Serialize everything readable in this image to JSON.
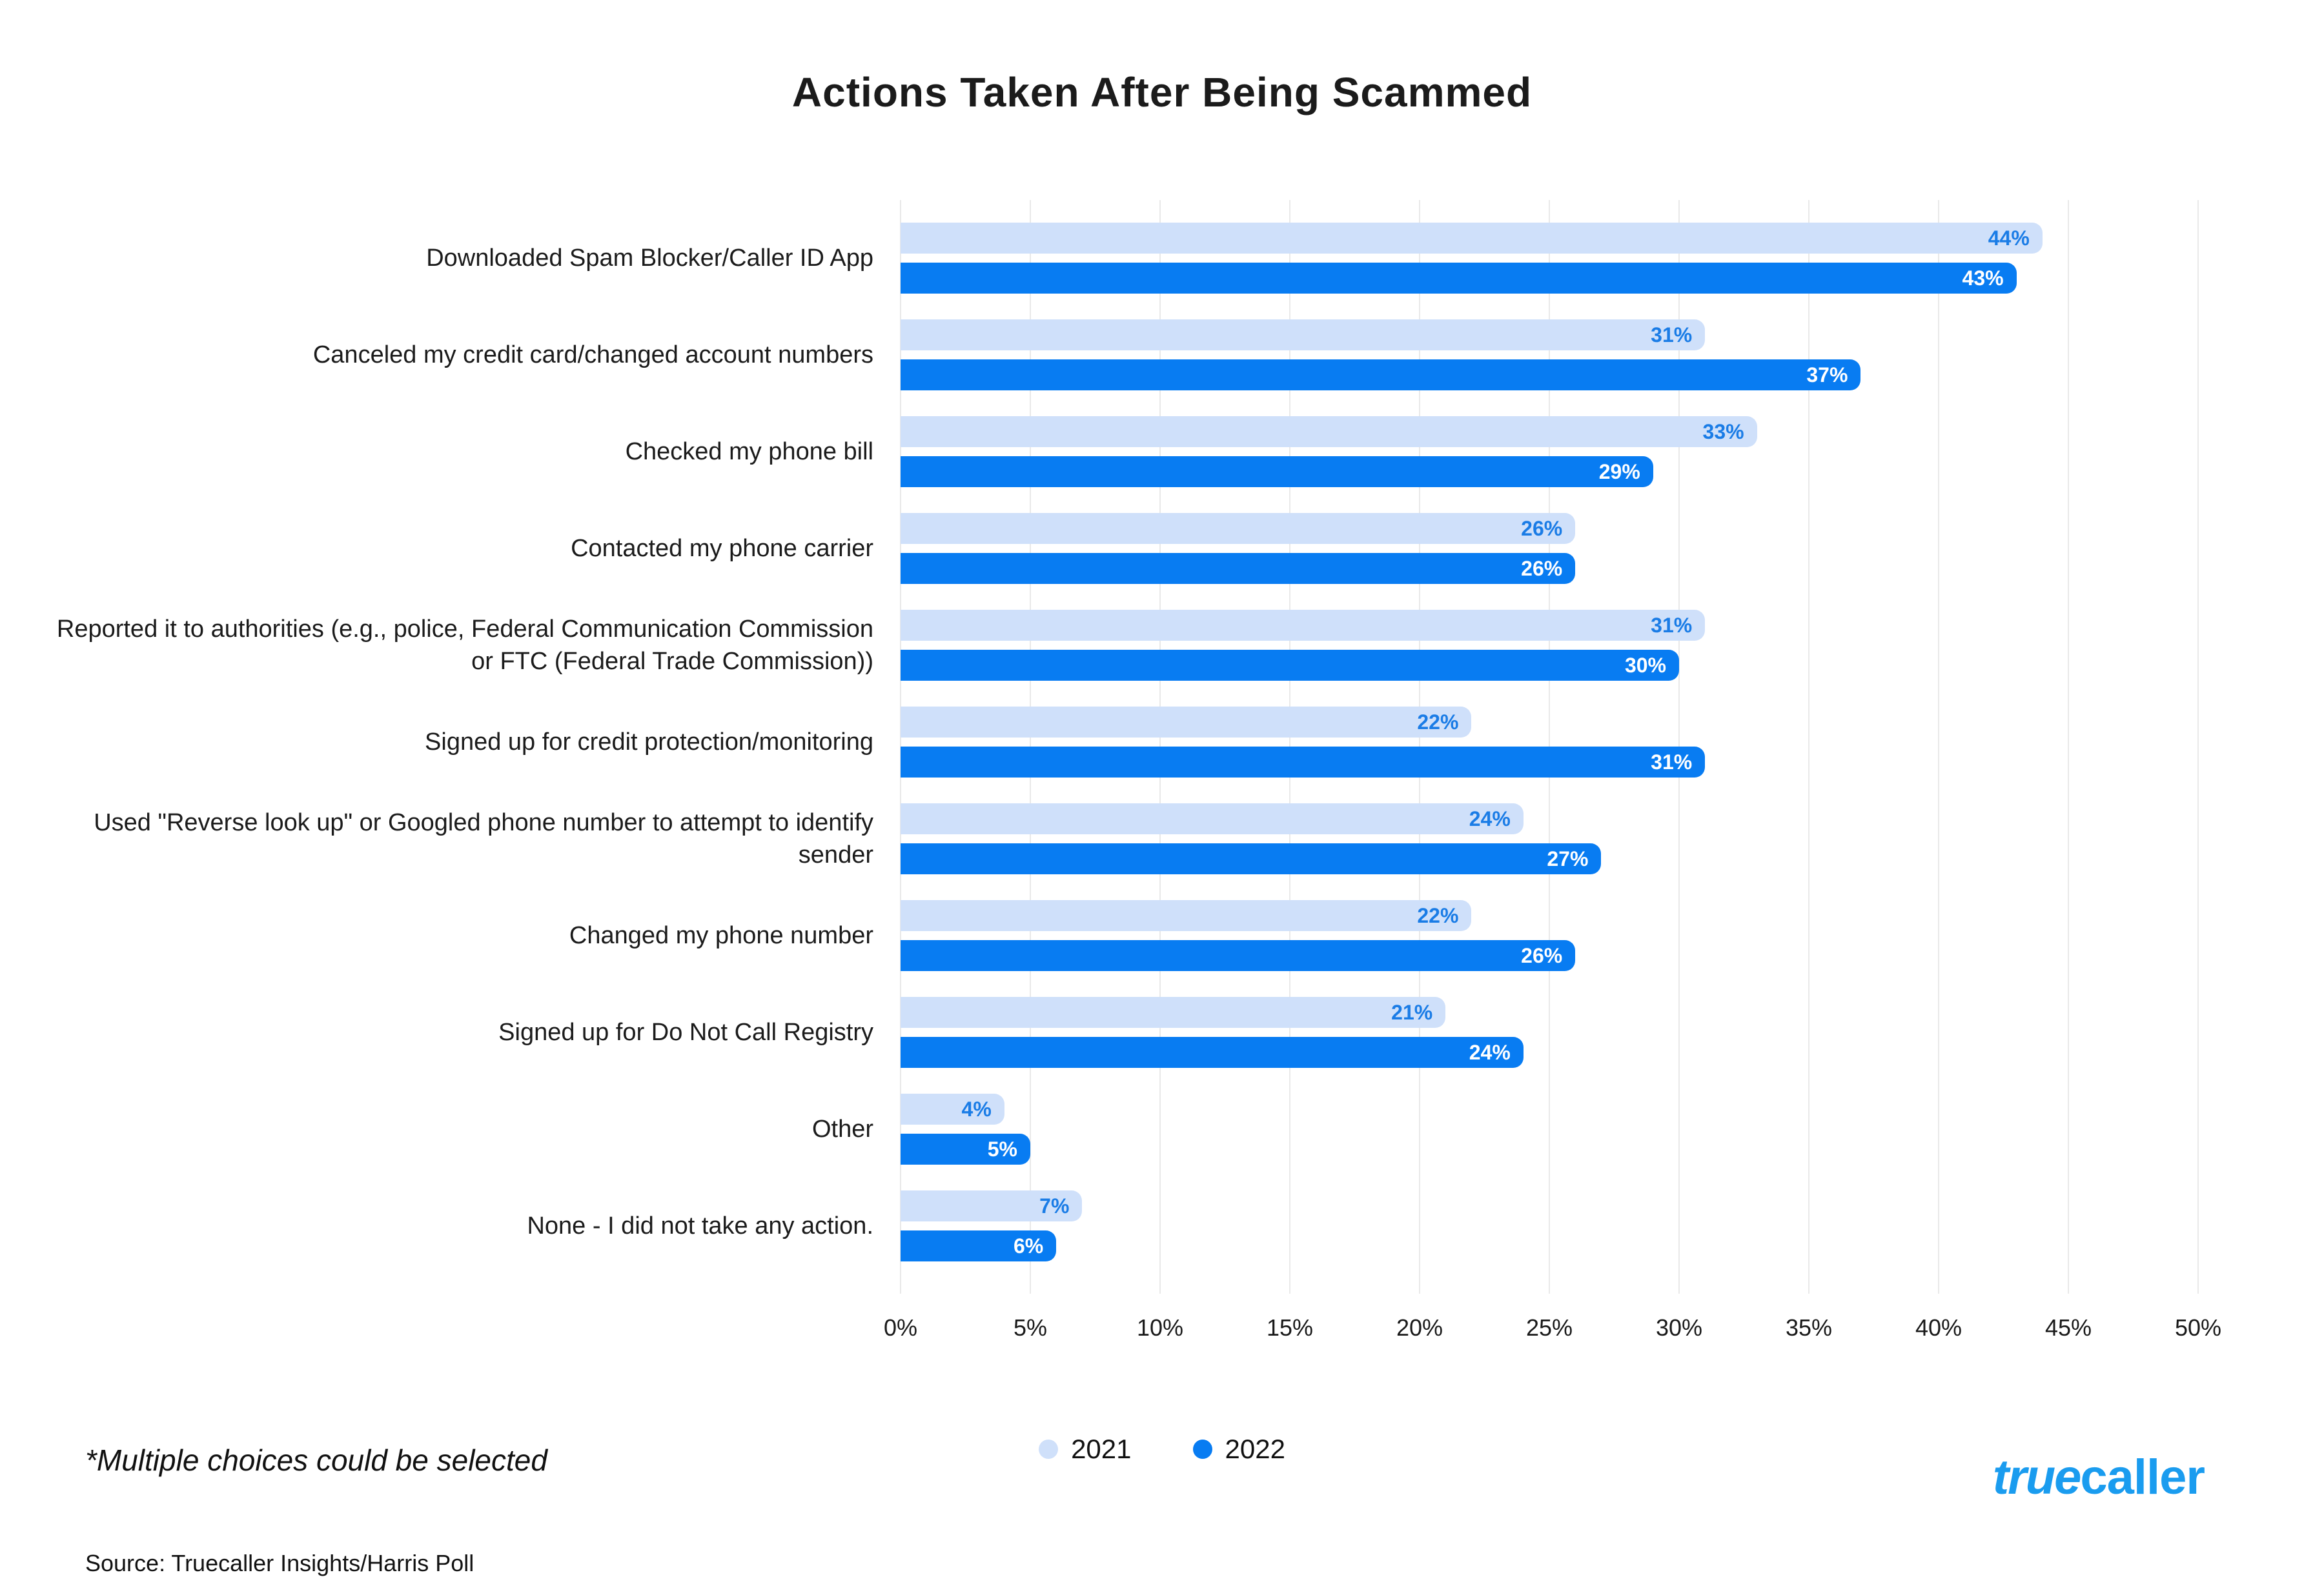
{
  "title": "Actions Taken After Being Scammed",
  "chart_data": {
    "type": "bar",
    "orientation": "horizontal",
    "title": "Actions Taken After Being Scammed",
    "xlim": [
      0,
      50
    ],
    "x_ticks": [
      "0%",
      "5%",
      "10%",
      "15%",
      "20%",
      "25%",
      "30%",
      "35%",
      "40%",
      "45%",
      "50%"
    ],
    "grid": true,
    "legend_position": "bottom-center",
    "categories": [
      "Downloaded Spam Blocker/Caller ID App",
      "Canceled my credit card/changed account numbers",
      "Checked my phone bill",
      "Contacted my phone carrier",
      "Reported it to authorities (e.g., police, Federal Communication Commission or FTC (Federal Trade Commission))",
      "Signed up for credit protection/monitoring",
      "Used \"Reverse look up\" or Googled phone number to attempt to identify sender",
      "Changed my phone number",
      "Signed up for Do Not Call Registry",
      "Other",
      "None - I did not take any action."
    ],
    "series": [
      {
        "name": "2021",
        "color": "#cfe0fa",
        "label_color": "#1a7ce6",
        "values": [
          44,
          31,
          33,
          26,
          31,
          22,
          24,
          22,
          21,
          4,
          7
        ],
        "labels": [
          "44%",
          "31%",
          "33%",
          "26%",
          "31%",
          "22%",
          "24%",
          "22%",
          "21%",
          "4%",
          "7%"
        ]
      },
      {
        "name": "2022",
        "color": "#087cf2",
        "label_color": "#ffffff",
        "values": [
          43,
          37,
          29,
          26,
          30,
          31,
          27,
          26,
          24,
          5,
          6
        ],
        "labels": [
          "43%",
          "37%",
          "29%",
          "26%",
          "30%",
          "31%",
          "27%",
          "26%",
          "24%",
          "5%",
          "6%"
        ]
      }
    ]
  },
  "footnote": "*Multiple choices could be selected",
  "source": "Source: Truecaller Insights/Harris Poll",
  "logo": {
    "part1": "true",
    "part2": "caller",
    "color": "#1a9cef"
  }
}
